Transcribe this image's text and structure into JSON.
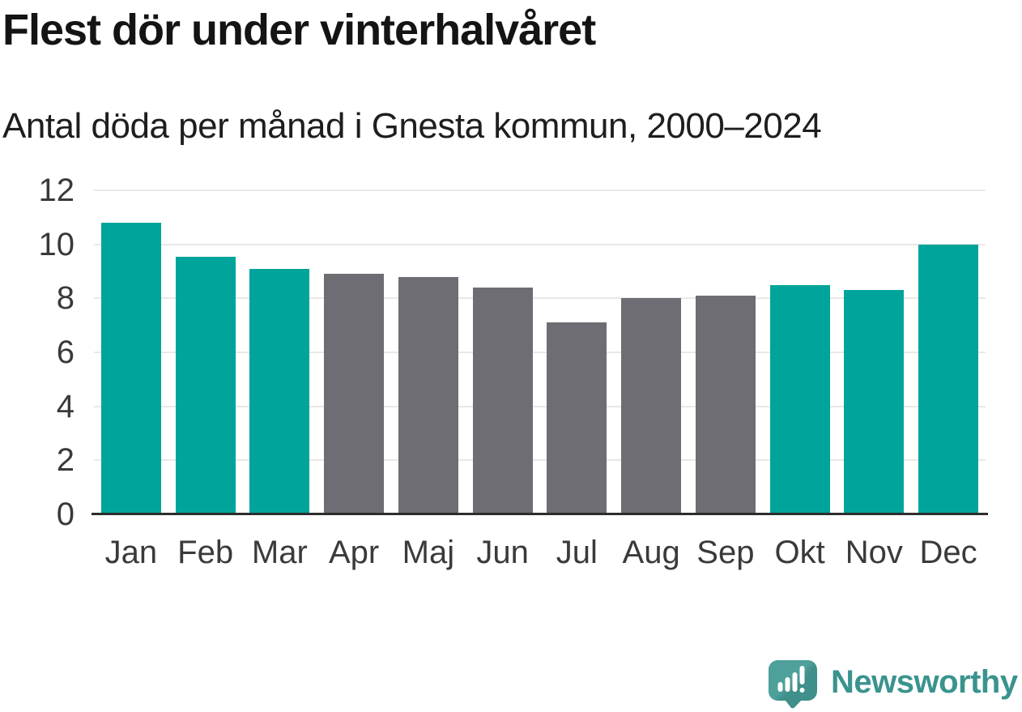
{
  "title": "Flest dör under vinterhalvåret",
  "subtitle": "Antal döda per månad i Gnesta kommun, 2000–2024",
  "branding": {
    "logo_text": "Newsworthy"
  },
  "colors": {
    "winter_bar": "#00a49a",
    "summer_bar": "#6d6d73",
    "gridline": "#e8e8e8",
    "axis_line": "#2d2d2d",
    "title_text": "#141414",
    "tick_text": "#3a3a3a",
    "logo_teal": "#3a938e",
    "logo_mark": "#4a9b96",
    "logo_mark_dark": "#3f8f8a"
  },
  "chart_data": {
    "type": "bar",
    "title": "Flest dör under vinterhalvåret",
    "subtitle": "Antal döda per månad i Gnesta kommun, 2000–2024",
    "categories": [
      "Jan",
      "Feb",
      "Mar",
      "Apr",
      "Maj",
      "Jun",
      "Jul",
      "Aug",
      "Sep",
      "Okt",
      "Nov",
      "Dec"
    ],
    "values": [
      10.8,
      9.55,
      9.1,
      8.9,
      8.8,
      8.4,
      7.1,
      8.0,
      8.1,
      8.5,
      8.3,
      10.0
    ],
    "series_color_keys": [
      "winter_bar",
      "winter_bar",
      "winter_bar",
      "summer_bar",
      "summer_bar",
      "summer_bar",
      "summer_bar",
      "summer_bar",
      "summer_bar",
      "winter_bar",
      "winter_bar",
      "winter_bar"
    ],
    "xlabel": "",
    "ylabel": "",
    "ylim": [
      0,
      12
    ],
    "yticks": [
      0,
      2,
      4,
      6,
      8,
      10,
      12
    ],
    "grid": "horizontal",
    "legend": "none"
  }
}
